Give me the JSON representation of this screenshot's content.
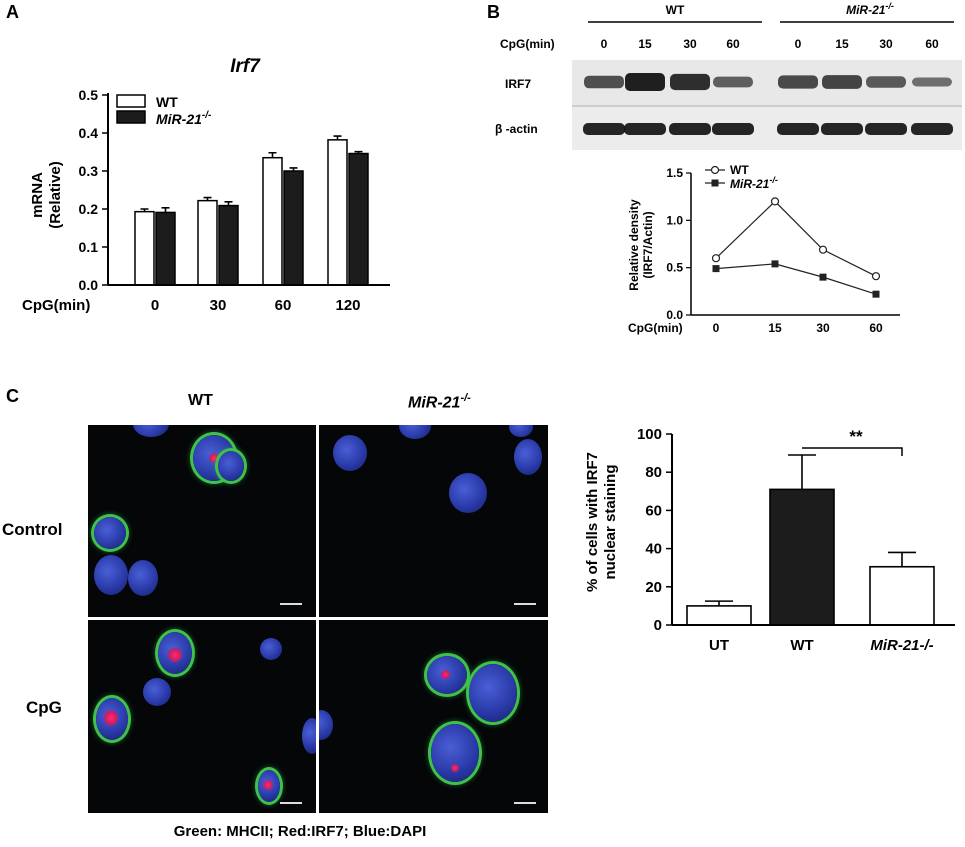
{
  "panels": {
    "a": "A",
    "b": "B",
    "c": "C"
  },
  "panel_a": {
    "title": "Irf7",
    "ylabel_line1": "mRNA",
    "ylabel_line2": "(Relative)",
    "x_prefix": "CpG(min)",
    "legend": [
      "WT",
      "MiR-21"
    ],
    "legend_superscript": "-/-",
    "chart_data": {
      "type": "bar",
      "categories": [
        "0",
        "30",
        "60",
        "120"
      ],
      "series": [
        {
          "name": "WT",
          "values": [
            0.193,
            0.222,
            0.335,
            0.382
          ],
          "errors": [
            0.007,
            0.008,
            0.013,
            0.01
          ],
          "color": "#ffffff"
        },
        {
          "name": "MiR-21-/-",
          "values": [
            0.191,
            0.209,
            0.3,
            0.346
          ],
          "errors": [
            0.012,
            0.01,
            0.008,
            0.005
          ],
          "color": "#1c1c1c"
        }
      ],
      "ylim": [
        0.0,
        0.5
      ],
      "yticks": [
        "0.0",
        "0.1",
        "0.2",
        "0.3",
        "0.4",
        "0.5"
      ]
    }
  },
  "panel_b": {
    "wt_header": "WT",
    "ko_header": "MiR-21",
    "ko_superscript": "-/-",
    "cpg_label": "CpG(min)",
    "lanes": [
      "0",
      "15",
      "30",
      "60",
      "0",
      "15",
      "30",
      "60"
    ],
    "band_labels": [
      "IRF7",
      "β -actin"
    ],
    "ylabel_line1": "Relative density",
    "ylabel_line2": "(IRF7/Actin)",
    "x_prefix": "CpG(min)",
    "legend": [
      "WT",
      "MiR-21"
    ],
    "legend_superscript": "-/-",
    "chart_data": {
      "type": "line",
      "x": [
        "0",
        "15",
        "30",
        "60"
      ],
      "series": [
        {
          "name": "WT",
          "values": [
            0.6,
            1.2,
            0.69,
            0.41
          ],
          "marker": "open-circle"
        },
        {
          "name": "MiR-21-/-",
          "values": [
            0.49,
            0.54,
            0.4,
            0.22
          ],
          "marker": "filled-square"
        }
      ],
      "ylim": [
        0.0,
        1.5
      ],
      "yticks": [
        "0.0",
        "0.5",
        "1.0",
        "1.5"
      ]
    }
  },
  "panel_c": {
    "col_wt": "WT",
    "col_ko": "MiR-21",
    "col_ko_superscript": "-/-",
    "row_control": "Control",
    "row_cpg": "CpG",
    "caption": "Green: MHCII; Red:IRF7; Blue:DAPI",
    "ylabel_line1": "% of cells with IRF7",
    "ylabel_line2": "nuclear staining",
    "significance": "**",
    "chart_data": {
      "type": "bar",
      "categories": [
        "UT",
        "WT",
        "MiR-21-/-"
      ],
      "values": [
        10,
        71,
        30.5
      ],
      "errors": [
        2.5,
        18,
        7.5
      ],
      "colors": [
        "#ffffff",
        "#1c1c1c",
        "#ffffff"
      ],
      "ylim": [
        0,
        100
      ],
      "yticks": [
        "0",
        "20",
        "40",
        "60",
        "80",
        "100"
      ]
    }
  }
}
